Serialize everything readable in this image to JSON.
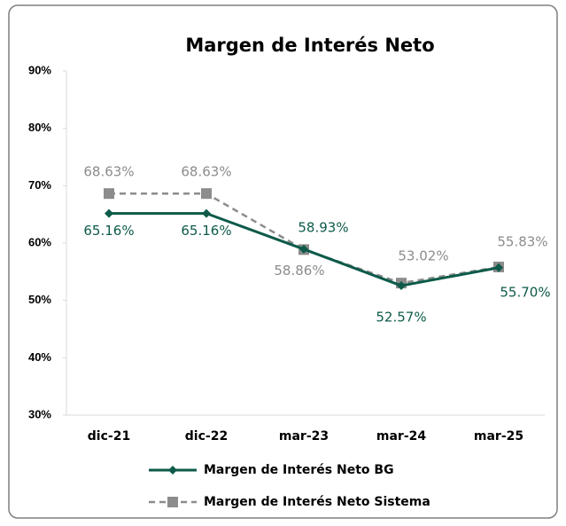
{
  "chart_data": {
    "type": "line",
    "title": "Margen de Interés Neto",
    "categories": [
      "dic-21",
      "dic-22",
      "mar-23",
      "mar-24",
      "mar-25"
    ],
    "series": [
      {
        "name": "Margen de Interés Neto BG",
        "color": "#0d5a4a",
        "values": [
          65.16,
          65.16,
          58.93,
          52.57,
          55.7
        ],
        "value_labels": [
          "65.16%",
          "65.16%",
          "58.93%",
          "52.57%",
          "55.70%"
        ]
      },
      {
        "name": "Margen de Interés Neto Sistema",
        "color": "#8c8c8c",
        "values": [
          68.63,
          68.63,
          58.86,
          53.02,
          55.83
        ],
        "value_labels": [
          "68.63%",
          "68.63%",
          "58.86%",
          "53.02%",
          "55.83%"
        ]
      }
    ],
    "ylim": [
      30,
      90
    ],
    "yticks": [
      {
        "value": 30,
        "label": "30%"
      },
      {
        "value": 40,
        "label": "40%"
      },
      {
        "value": 50,
        "label": "50%"
      },
      {
        "value": 60,
        "label": "60%"
      },
      {
        "value": 70,
        "label": "70%"
      },
      {
        "value": 80,
        "label": "80%"
      },
      {
        "value": 90,
        "label": "90%"
      }
    ],
    "legend": "bottom"
  }
}
